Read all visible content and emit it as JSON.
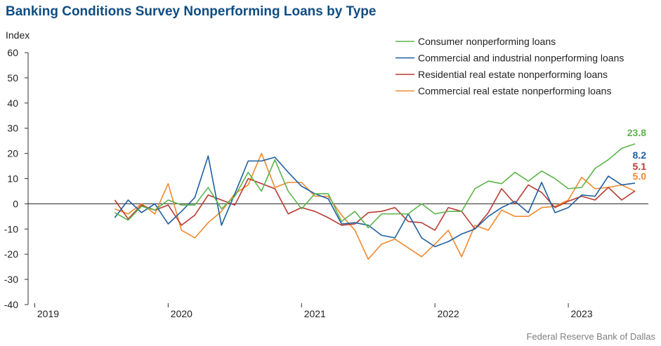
{
  "title": "Banking Conditions Survey Nonperforming Loans by Type",
  "source": "Federal Reserve Bank of Dallas",
  "chart_data": {
    "type": "line",
    "ylabel": "Index",
    "ylim": [
      -40,
      60
    ],
    "yticks": [
      60,
      50,
      40,
      30,
      20,
      10,
      0,
      -10,
      -20,
      -30,
      -40
    ],
    "xlim": [
      0,
      46.5
    ],
    "xticks": [
      {
        "label": "2019",
        "pos": 5.5
      },
      {
        "label": "2020",
        "pos": 15.5
      },
      {
        "label": "2021",
        "pos": 25.5
      },
      {
        "label": "2022",
        "pos": 35.5
      },
      {
        "label": "2023",
        "pos": 45.5
      }
    ],
    "legend_position": "top-right",
    "series": [
      {
        "name": "Consumer nonperforming loans",
        "color": "#5cb44a",
        "end_label": "23.8",
        "values": [
          -3.5,
          -6.5,
          -1,
          -2.5,
          1.5,
          -0.5,
          -0.5,
          6.5,
          -2,
          3,
          12.5,
          5,
          17.5,
          5,
          -2,
          4,
          4,
          -7,
          -3,
          -9.5,
          -4,
          -4,
          -4,
          0,
          -4,
          -3,
          -3,
          6,
          9,
          8,
          12.5,
          9,
          13,
          10,
          6,
          6.5,
          14,
          17.5,
          22,
          23.8
        ]
      },
      {
        "name": "Commercial and industrial nonperforming loans",
        "color": "#1f5fa0",
        "end_label": "8.2",
        "values": [
          -5.5,
          1.5,
          -3.5,
          0,
          -8,
          -3,
          2.5,
          19,
          -8.5,
          4,
          17,
          17,
          18.5,
          12.5,
          7,
          4,
          2,
          -8,
          -7.5,
          -8.5,
          -12.5,
          -13.5,
          -4,
          -13.5,
          -17,
          -15,
          -12,
          -10,
          -5,
          -1.5,
          1,
          -3.5,
          8.5,
          -3.5,
          -1.5,
          3.5,
          3,
          11,
          7.5,
          8.2
        ]
      },
      {
        "name": "Residential real estate nonperforming loans",
        "color": "#b93a32",
        "end_label": "5.1",
        "values": [
          1.5,
          -6,
          -0.5,
          -2.5,
          -0.5,
          -8.5,
          -4.5,
          3.5,
          1.5,
          -0.5,
          10,
          8,
          6,
          -4,
          -1.5,
          -3,
          -5.5,
          -8.5,
          -8,
          -3.5,
          -3,
          -1.5,
          -7,
          -7.5,
          -10.5,
          -1.5,
          -3,
          -10,
          -3.5,
          6,
          0,
          7.5,
          4.5,
          -1.5,
          1,
          3,
          1.5,
          6.5,
          1.5,
          5.1
        ]
      },
      {
        "name": "Commercial real estate nonperforming loans",
        "color": "#f1892d",
        "end_label": "5.0",
        "values": [
          -2,
          -4,
          0,
          -4,
          8,
          -10.5,
          -13.5,
          -7.5,
          -3,
          4,
          7.5,
          20,
          6.5,
          8.5,
          8.5,
          3,
          3,
          -4.5,
          -10.5,
          -22,
          -16,
          -14,
          -17.5,
          -21,
          -16,
          -10.5,
          -21,
          -8.5,
          -10.5,
          -2.5,
          -5,
          -5,
          -1.5,
          -1,
          1.5,
          10.5,
          6,
          6.5,
          7.5,
          5.0
        ]
      }
    ]
  }
}
